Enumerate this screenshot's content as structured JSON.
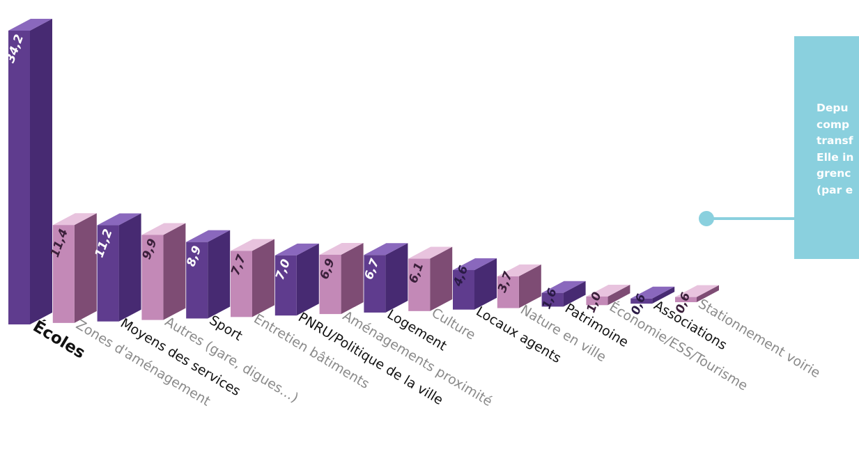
{
  "chart_data": {
    "type": "bar",
    "categories": [
      "Écoles",
      "Zones d'aménagement",
      "Moyens des services",
      "Autres (gare, digues…)",
      "Sport",
      "Entretien bâtiments",
      "PNRU/Politique de la ville",
      "Aménagements proximité",
      "Logement",
      "Culture",
      "Locaux agents",
      "Nature en ville",
      "Patrimoine",
      "Économie/ESS/Tourisme",
      "Associations",
      "Stationnement voirie"
    ],
    "values": [
      34.2,
      11.4,
      11.2,
      9.9,
      8.9,
      7.7,
      7.0,
      6.9,
      6.7,
      6.1,
      4.6,
      3.7,
      1.6,
      1.0,
      0.6,
      0.6
    ],
    "value_labels": [
      "34,2",
      "11,4",
      "11,2",
      "9,9",
      "8,9",
      "7,7",
      "7,0",
      "6,9",
      "6,7",
      "6,1",
      "4,6",
      "3,7",
      "1,6",
      "1,0",
      "0,6",
      "0,6"
    ],
    "ylim": [
      0,
      34.2
    ],
    "grid": false,
    "colors": {
      "dark_front": "#5f3c8e",
      "dark_side": "#472a72",
      "dark_top": "#8a68bd",
      "light_front": "#c389b7",
      "light_side": "#7e4c74",
      "light_top": "#e8c3de",
      "dark_label": "#111111",
      "light_label": "#8a8a8a",
      "value_on_dark": "#ffffff",
      "value_on_light": "#3a1f3a"
    }
  },
  "info_box": {
    "lines": [
      "Depu",
      "comp",
      "transf",
      "Elle in",
      "grenc",
      "(par e"
    ],
    "color": "#8ad0de"
  }
}
